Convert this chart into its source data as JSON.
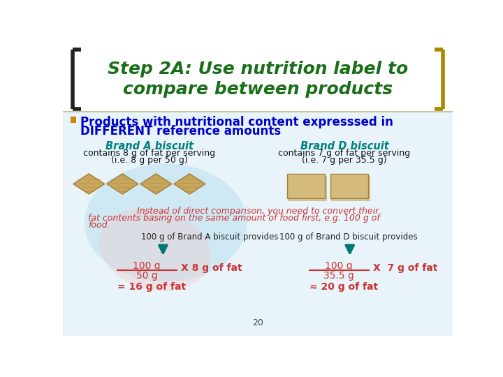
{
  "title_line1": "Step 2A: Use nutrition label to",
  "title_line2": "compare between products",
  "title_color": "#1a6e1a",
  "title_fontsize": 18,
  "bullet_color": "#cc8800",
  "bullet_text_line1": "Products with nutritional content expresssed in",
  "bullet_text_line2": "DIFFERENT reference amounts",
  "bullet_fontsize": 12,
  "brand_a_title": "Brand A biscuit",
  "brand_d_title": "Brand D biscuit",
  "brand_color": "#008080",
  "brand_a_sub1": "contains 8 g of fat per serving",
  "brand_a_sub2": "(i.e. 8 g per 50 g)",
  "brand_d_sub1": "contains 7 g of fat per serving",
  "brand_d_sub2": "(i.e. 7 g per 35.5 g)",
  "sub_fontsize": 9,
  "redirect_line1": "Instead of direct comparison, you need to convert their",
  "redirect_line2": "fat contents basing on the same amount of food first, e.g. 100 g of",
  "redirect_line3": "food.",
  "redirect_color": "#cc3333",
  "redirect_fontsize": 9,
  "brand_a_label": "100 g of Brand A biscuit provides",
  "brand_d_label": "100 g of Brand D biscuit provides",
  "label_fontsize": 8.5,
  "arrow_color": "#007777",
  "formula_a_num": "100 g",
  "formula_a_den": "50 g",
  "formula_a_mult": "X 8 g of fat",
  "formula_a_result": "= 16 g of fat",
  "formula_d_num": "100 g",
  "formula_d_den": "35.5 g",
  "formula_d_mult": "X  7 g of fat",
  "formula_d_result": "≈ 20 g of fat",
  "formula_color": "#cc3333",
  "formula_fontsize": 10,
  "page_number": "20",
  "bg_color": "#ffffff",
  "bracket_color_left": "#222222",
  "bracket_color_right": "#aa8800",
  "content_bg": "#e8f4fa"
}
